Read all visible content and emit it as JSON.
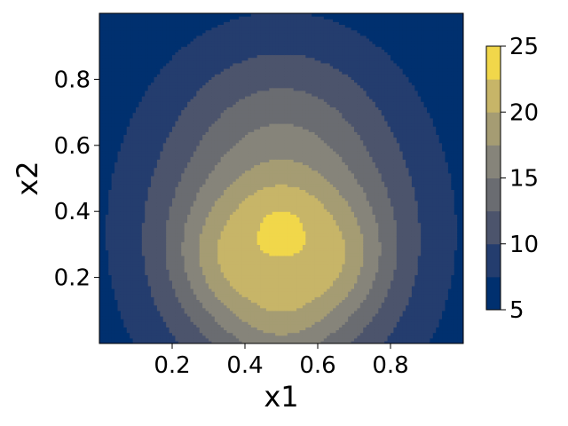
{
  "chart_data": {
    "type": "contour",
    "title": "",
    "xlabel": "x1",
    "ylabel": "x2",
    "xlim": [
      0.0,
      1.0
    ],
    "ylim": [
      0.0,
      1.0
    ],
    "xticks": [
      0.2,
      0.4,
      0.6,
      0.8
    ],
    "xtick_labels": [
      "0.2",
      "0.4",
      "0.6",
      "0.8"
    ],
    "yticks": [
      0.2,
      0.4,
      0.6,
      0.8
    ],
    "ytick_labels": [
      "0.2",
      "0.4",
      "0.6",
      "0.8"
    ],
    "colormap": "cividis",
    "levels": [
      5.0,
      7.5,
      10.0,
      12.5,
      15.0,
      17.5,
      20.0,
      22.5,
      25.0
    ],
    "level_colors": [
      "#00306f",
      "#243d6e",
      "#4c546c",
      "#6a6c71",
      "#86847a",
      "#a59c73",
      "#c7b568",
      "#f1d74a"
    ],
    "colorbar": {
      "range": [
        5,
        25
      ],
      "ticks": [
        5,
        10,
        15,
        20,
        25
      ],
      "tick_labels": [
        "5",
        "10",
        "15",
        "20",
        "25"
      ]
    },
    "grid": false,
    "legend": "none",
    "peak": {
      "x1": 0.51,
      "x2": 0.36,
      "value": 24
    },
    "surface_notes": "maximum near (0.51, 0.36); lobes toward lower-left, lower-right and bottom; decreasing toward top corners"
  }
}
